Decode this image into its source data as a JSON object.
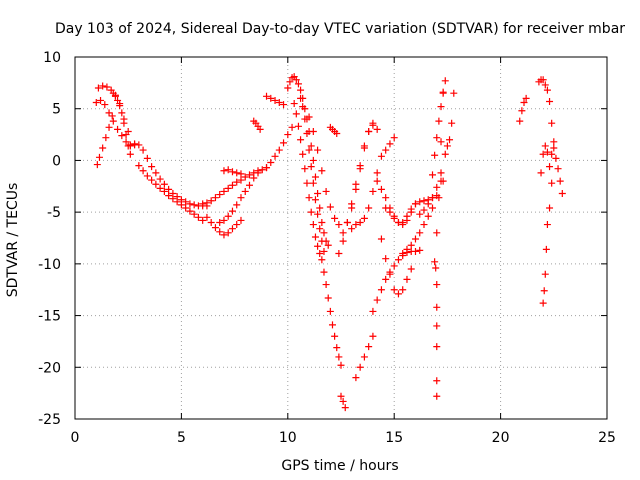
{
  "chart_data": {
    "type": "scatter",
    "title": "Day 103 of 2024, Sidereal Day-to-day VTEC variation (SDTVAR) for receiver mbar",
    "xlabel": "GPS time / hours",
    "ylabel": "SDTVAR / TECUs",
    "xlim": [
      0,
      25
    ],
    "ylim": [
      -25,
      10
    ],
    "xticks": [
      0,
      5,
      10,
      15,
      20,
      25
    ],
    "yticks": [
      10,
      5,
      0,
      -5,
      -10,
      -15,
      -20,
      -25
    ],
    "xtick_labels": [
      "0",
      "5",
      "10",
      "15",
      "20",
      "25"
    ],
    "ytick_labels": [
      "10",
      "5",
      "0",
      "-5",
      "-10",
      "-15",
      "-20",
      "-25"
    ],
    "grid": true,
    "marker": "+",
    "color": "#ff0000",
    "series": [
      {
        "x": [
          1.0,
          1.2,
          1.4,
          1.6,
          1.8,
          2.0,
          2.2,
          2.4,
          2.6,
          2.8
        ],
        "y": [
          5.6,
          5.8,
          5.4,
          4.6,
          3.8,
          3.0,
          2.4,
          1.8,
          1.4,
          1.5
        ]
      },
      {
        "x": [
          1.05,
          1.15,
          1.3,
          1.45,
          1.6,
          1.75
        ],
        "y": [
          -0.4,
          0.3,
          1.2,
          2.2,
          3.2,
          4.3
        ]
      },
      {
        "x": [
          1.1,
          1.3,
          1.5,
          1.7,
          1.9,
          2.1,
          2.3,
          2.5
        ],
        "y": [
          7.0,
          7.2,
          7.1,
          6.8,
          6.3,
          5.5,
          4.0,
          2.8
        ]
      },
      {
        "x": [
          1.8,
          1.9,
          2.0,
          2.1,
          2.2,
          2.3,
          2.4,
          2.5,
          2.6
        ],
        "y": [
          6.5,
          6.2,
          5.8,
          5.3,
          4.6,
          3.6,
          2.5,
          1.4,
          0.6
        ]
      },
      {
        "x": [
          2.6,
          2.8,
          3.0,
          3.2,
          3.4,
          3.6,
          3.8,
          4.0,
          4.2,
          4.4,
          4.6,
          4.8,
          5.0,
          5.2,
          5.4,
          5.6,
          5.8,
          6.0,
          6.2
        ],
        "y": [
          1.5,
          1.6,
          1.5,
          1.0,
          0.2,
          -0.6,
          -1.2,
          -1.8,
          -2.3,
          -2.8,
          -3.2,
          -3.5,
          -3.8,
          -4.0,
          -4.2,
          -4.3,
          -4.4,
          -4.4,
          -4.4
        ]
      },
      {
        "x": [
          3.0,
          3.2,
          3.4,
          3.6,
          3.8,
          4.0,
          4.2,
          4.4,
          4.6,
          4.8,
          5.0,
          5.2,
          5.4,
          5.6,
          5.8,
          6.0
        ],
        "y": [
          -0.5,
          -1.0,
          -1.5,
          -1.9,
          -2.3,
          -2.7,
          -3.0,
          -3.4,
          -3.7,
          -4.0,
          -4.3,
          -4.6,
          -4.9,
          -5.2,
          -5.5,
          -5.8
        ]
      },
      {
        "x": [
          6.0,
          6.2,
          6.4,
          6.6,
          6.8,
          7.0,
          7.2,
          7.4,
          7.6,
          7.8,
          8.0,
          8.2,
          8.4,
          8.6,
          8.8,
          9.0
        ],
        "y": [
          -4.2,
          -4.1,
          -3.9,
          -3.6,
          -3.3,
          -3.0,
          -2.7,
          -2.4,
          -2.1,
          -1.9,
          -1.6,
          -1.4,
          -1.2,
          -1.0,
          -0.9,
          -0.7
        ]
      },
      {
        "x": [
          6.2,
          6.4,
          6.6,
          6.8,
          7.0,
          7.2,
          7.4,
          7.6,
          7.8
        ],
        "y": [
          -5.5,
          -6.0,
          -6.5,
          -6.9,
          -7.2,
          -7.0,
          -6.6,
          -6.2,
          -5.8
        ]
      },
      {
        "x": [
          6.8,
          7.0,
          7.2,
          7.4,
          7.6,
          7.8,
          8.0,
          8.2,
          8.4,
          8.6
        ],
        "y": [
          -6.0,
          -5.8,
          -5.4,
          -4.9,
          -4.3,
          -3.6,
          -3.0,
          -2.4,
          -1.7,
          -1.2
        ]
      },
      {
        "x": [
          7.0,
          7.2,
          7.4,
          7.6,
          7.8
        ],
        "y": [
          -1.0,
          -0.9,
          -1.1,
          -1.2,
          -1.3
        ]
      },
      {
        "x": [
          8.4,
          8.5,
          8.6,
          8.7
        ],
        "y": [
          3.8,
          3.6,
          3.3,
          3.0
        ]
      },
      {
        "x": [
          9.0,
          9.2,
          9.4,
          9.6,
          9.8,
          10.0,
          10.2
        ],
        "y": [
          -0.7,
          -0.2,
          0.4,
          1.0,
          1.7,
          2.5,
          3.2
        ]
      },
      {
        "x": [
          9.0,
          9.2,
          9.4,
          9.6,
          9.8
        ],
        "y": [
          6.2,
          6.0,
          5.8,
          5.6,
          5.4
        ]
      },
      {
        "x": [
          10.0,
          10.1,
          10.2,
          10.3,
          10.4,
          10.5,
          10.6,
          10.7
        ],
        "y": [
          7.0,
          7.6,
          8.0,
          8.1,
          7.8,
          7.4,
          6.8,
          6.0
        ]
      },
      {
        "x": [
          10.3,
          10.4,
          10.5,
          10.6,
          10.7,
          10.8,
          10.9,
          11.0,
          11.1,
          11.2,
          11.3,
          11.4,
          11.5
        ],
        "y": [
          5.5,
          4.5,
          3.3,
          2.0,
          0.6,
          -0.8,
          -2.2,
          -3.6,
          -5.0,
          -6.2,
          -7.4,
          -8.3,
          -9.0
        ]
      },
      {
        "x": [
          10.6,
          10.7,
          10.8,
          10.9,
          11.0,
          11.1,
          11.2,
          11.3,
          11.4,
          11.5,
          11.6,
          11.7
        ],
        "y": [
          6.0,
          5.2,
          4.0,
          2.6,
          1.0,
          -0.6,
          -2.2,
          -3.8,
          -5.2,
          -6.6,
          -7.8,
          -8.8
        ]
      },
      {
        "x": [
          10.8,
          10.9,
          11.0,
          11.1,
          11.2,
          11.3,
          11.4,
          11.5,
          11.6,
          11.7,
          11.8,
          11.9
        ],
        "y": [
          5.0,
          4.0,
          2.8,
          1.4,
          0.0,
          -1.6,
          -3.2,
          -4.6,
          -6.0,
          -7.0,
          -7.8,
          -8.2
        ]
      },
      {
        "x": [
          11.0,
          11.2,
          11.4,
          11.6,
          11.8,
          12.0,
          12.2,
          12.4
        ],
        "y": [
          4.2,
          2.8,
          1.0,
          -1.0,
          -3.0,
          -4.5,
          -5.6,
          -6.2
        ]
      },
      {
        "x": [
          11.6,
          11.7,
          11.8,
          11.9,
          12.0,
          12.1,
          12.2,
          12.3,
          12.4,
          12.5
        ],
        "y": [
          -9.6,
          -10.8,
          -12.0,
          -13.3,
          -14.6,
          -15.9,
          -17.0,
          -18.1,
          -19.0,
          -19.8
        ]
      },
      {
        "x": [
          12.0,
          12.1,
          12.2,
          12.3
        ],
        "y": [
          3.2,
          3.0,
          2.8,
          2.6
        ]
      },
      {
        "x": [
          12.4,
          12.6,
          12.8,
          13.0,
          13.2,
          13.4,
          13.6,
          13.8,
          14.0
        ],
        "y": [
          -9.0,
          -7.8,
          -6.0,
          -4.2,
          -2.3,
          -0.5,
          1.4,
          2.8,
          3.4
        ]
      },
      {
        "x": [
          12.5,
          12.6,
          12.7
        ],
        "y": [
          -22.8,
          -23.3,
          -23.9
        ]
      },
      {
        "x": [
          12.6,
          12.8,
          13.0,
          13.2,
          13.4,
          13.6,
          13.8,
          14.0,
          14.2
        ],
        "y": [
          -7.0,
          -6.0,
          -4.6,
          -2.8,
          -0.8,
          1.2,
          2.8,
          3.6,
          3.0
        ]
      },
      {
        "x": [
          13.0,
          13.2,
          13.4,
          13.6,
          13.8,
          14.0,
          14.2,
          14.4,
          14.6,
          14.8,
          15.0
        ],
        "y": [
          -6.6,
          -6.2,
          -6.0,
          -5.6,
          -4.6,
          -3.0,
          -1.2,
          0.4,
          1.0,
          1.6,
          2.2
        ]
      },
      {
        "x": [
          13.2,
          13.4,
          13.6,
          13.8,
          14.0
        ],
        "y": [
          -21.0,
          -20.0,
          -19.0,
          -18.0,
          -17.0
        ]
      },
      {
        "x": [
          14.0,
          14.2,
          14.4,
          14.6,
          14.8,
          15.0,
          15.2,
          15.4,
          15.6,
          15.8,
          16.0,
          16.2
        ],
        "y": [
          -14.6,
          -13.5,
          -12.5,
          -11.5,
          -10.8,
          -10.2,
          -9.6,
          -9.2,
          -8.9,
          -8.8,
          -8.8,
          -8.7
        ]
      },
      {
        "x": [
          14.4,
          14.6,
          14.8,
          15.0,
          15.2,
          15.4,
          15.6,
          15.8
        ],
        "y": [
          -7.6,
          -9.5,
          -11.0,
          -12.5,
          -12.9,
          -12.5,
          -11.5,
          -10.5
        ]
      },
      {
        "x": [
          14.6,
          14.8,
          15.0,
          15.2,
          15.4,
          15.6,
          15.8,
          16.0
        ],
        "y": [
          -4.6,
          -5.0,
          -5.6,
          -6.0,
          -6.2,
          -5.8,
          -5.0,
          -4.2
        ]
      },
      {
        "x": [
          14.2,
          14.4,
          14.6,
          14.8,
          15.0,
          15.2,
          15.4,
          15.6,
          15.8,
          16.0,
          16.2,
          16.4,
          16.6,
          16.8
        ],
        "y": [
          -2.0,
          -2.8,
          -3.6,
          -4.6,
          -5.4,
          -6.0,
          -6.0,
          -5.4,
          -4.7,
          -4.2,
          -4.0,
          -3.9,
          -3.8,
          -3.6
        ]
      },
      {
        "x": [
          15.4,
          15.6,
          15.8,
          16.0,
          16.2,
          16.4,
          16.6,
          16.8,
          17.0,
          17.2
        ],
        "y": [
          -9.0,
          -8.6,
          -8.2,
          -7.6,
          -7.0,
          -6.2,
          -5.4,
          -4.6,
          -3.4,
          -2.0
        ]
      },
      {
        "x": [
          16.2,
          16.4,
          16.6,
          16.8,
          17.0,
          17.2,
          17.4,
          17.6
        ],
        "y": [
          -5.2,
          -4.8,
          -4.2,
          -3.6,
          -2.6,
          -1.2,
          0.6,
          2.0
        ]
      },
      {
        "x": [
          16.8,
          16.9,
          17.0,
          17.1,
          17.2,
          17.3,
          17.4
        ],
        "y": [
          -1.4,
          0.5,
          2.2,
          3.8,
          5.2,
          6.6,
          7.7
        ]
      },
      {
        "x": [
          17.0,
          17.1,
          17.2,
          17.3
        ],
        "y": [
          -7.0,
          -3.6,
          1.8,
          6.5
        ]
      },
      {
        "x": [
          16.9,
          16.95,
          17.0,
          17.0,
          17.0,
          17.0,
          17.0,
          17.0
        ],
        "y": [
          -9.8,
          -10.4,
          -12.0,
          -14.2,
          -16.0,
          -18.0,
          -21.3,
          -22.8
        ]
      },
      {
        "x": [
          17.3,
          17.5,
          17.7,
          17.8
        ],
        "y": [
          -2.0,
          1.4,
          3.6,
          6.5
        ]
      },
      {
        "x": [
          20.9,
          21.0,
          21.1,
          21.2
        ],
        "y": [
          3.8,
          4.8,
          5.6,
          6.0
        ]
      },
      {
        "x": [
          21.8,
          21.9,
          22.0,
          22.1,
          22.2,
          22.3,
          22.4,
          22.5
        ],
        "y": [
          7.6,
          7.8,
          7.8,
          7.3,
          6.8,
          5.7,
          3.6,
          1.8
        ]
      },
      {
        "x": [
          21.9,
          22.0,
          22.1,
          22.2,
          22.3,
          22.4
        ],
        "y": [
          -1.2,
          0.6,
          1.4,
          0.8,
          -0.6,
          -2.2
        ]
      },
      {
        "x": [
          22.0,
          22.05,
          22.1,
          22.15,
          22.2,
          22.3
        ],
        "y": [
          -13.8,
          -12.6,
          -11.0,
          -8.6,
          -6.2,
          -4.6
        ]
      },
      {
        "x": [
          22.4,
          22.5,
          22.6,
          22.7,
          22.8,
          22.9
        ],
        "y": [
          0.6,
          1.2,
          0.2,
          -0.8,
          -2.0,
          -3.2
        ]
      }
    ]
  }
}
